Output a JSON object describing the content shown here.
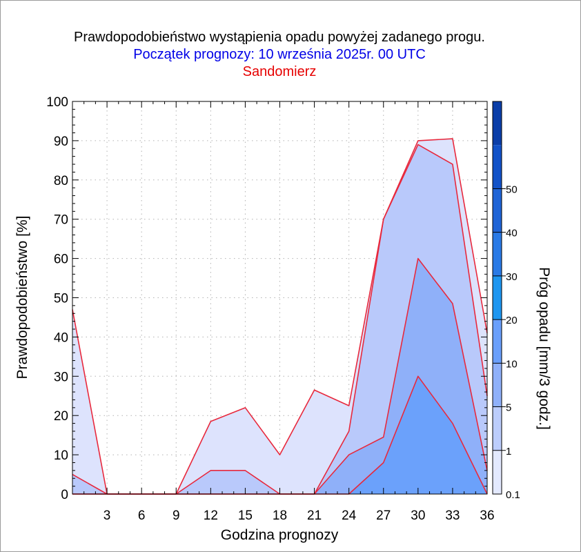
{
  "title": "Prawdopodobieństwo wystąpienia opadu powyżej zadanego progu.",
  "subtitle": "Początek prognozy: 10 września 2025r. 00 UTC",
  "location": "Sandomierz",
  "colors": {
    "title": "#000000",
    "subtitle": "#0000e6",
    "location": "#e60000",
    "outline": "#e8283c",
    "grid": "#b0b0b0"
  },
  "chart_data": {
    "type": "area",
    "xlabel": "Godzina prognozy",
    "ylabel": "Prawdopodobieństwo [%]",
    "x": [
      0,
      3,
      6,
      9,
      12,
      15,
      18,
      21,
      24,
      27,
      30,
      33,
      36
    ],
    "x_tick_labels": [
      "3",
      "6",
      "9",
      "12",
      "15",
      "18",
      "21",
      "24",
      "27",
      "30",
      "33",
      "36"
    ],
    "xlim": [
      0,
      36
    ],
    "ylim": [
      0,
      100
    ],
    "y_ticks": [
      0,
      10,
      20,
      30,
      40,
      50,
      60,
      70,
      80,
      90,
      100
    ],
    "grid": true,
    "series": [
      {
        "threshold": "0.1",
        "color": "#dde3fd",
        "values": [
          47,
          0,
          0,
          0,
          18.5,
          22,
          10,
          26.5,
          22.5,
          70,
          90,
          90.5,
          41
        ]
      },
      {
        "threshold": "1",
        "color": "#b9c9fb",
        "values": [
          5,
          0,
          0,
          0,
          6,
          6,
          0,
          0,
          16,
          70,
          89,
          84,
          25
        ]
      },
      {
        "threshold": "5",
        "color": "#8fb0f9",
        "values": [
          0,
          0,
          0,
          0,
          0,
          0,
          0,
          0,
          10,
          14.5,
          60,
          48.5,
          6
        ]
      },
      {
        "threshold": "10",
        "color": "#6ba1fb",
        "values": [
          0,
          0,
          0,
          0,
          0,
          0,
          0,
          0,
          0,
          8,
          30,
          18,
          0
        ]
      }
    ],
    "colorbar": {
      "title": "Próg opadu [mm/3 godz.]",
      "labels": [
        "0.1",
        "1",
        "5",
        "10",
        "20",
        "30",
        "40",
        "50"
      ],
      "colors": [
        "#e3e9fe",
        "#bccdfc",
        "#8fb0f9",
        "#6a9ffb",
        "#1e96f0",
        "#2a7ae6",
        "#1f64d6",
        "#1252c8",
        "#0b3ea8"
      ]
    }
  }
}
